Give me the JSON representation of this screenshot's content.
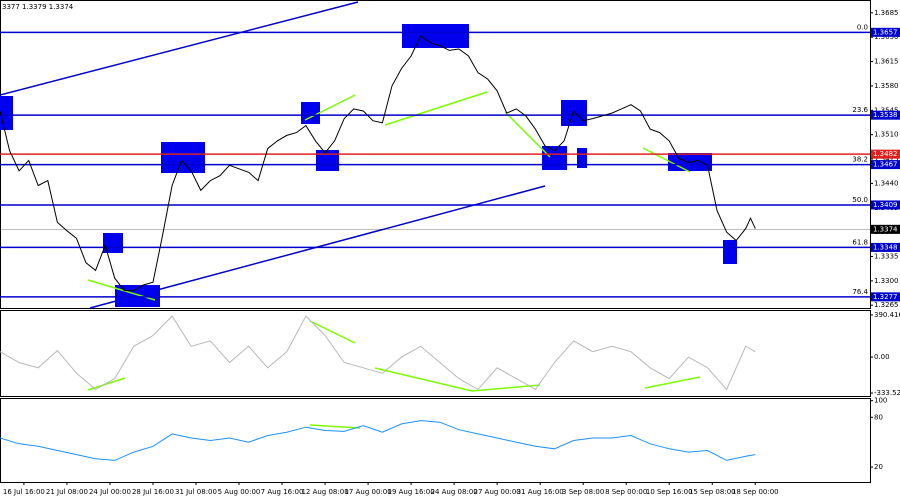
{
  "chart_data": [
    {
      "type": "line",
      "title": "3377 1.3379 1.3374",
      "color": "#000000",
      "xlim": [
        0,
        182
      ],
      "ylim": [
        1.3261,
        1.3702
      ],
      "yticks": [
        1.3685,
        {
          "value": 1.365,
          "label": "1.3650"
        },
        1.3615,
        {
          "value": 1.358,
          "label": "1.3580"
        },
        1.3545,
        {
          "value": 1.351,
          "label": "1.3510"
        },
        1.3475,
        {
          "value": 1.344,
          "label": "1.3440"
        },
        1.3405,
        {
          "value": 1.337,
          "label": "1.3370"
        },
        1.3335,
        {
          "value": 1.33,
          "label": "1.3300"
        },
        1.3265
      ],
      "levels": [
        {
          "value": 1.3657,
          "color": "#0000cc",
          "fib": "0.0"
        },
        {
          "value": 1.3538,
          "color": "#0000cc",
          "fib": "23.6"
        },
        {
          "value": 1.3482,
          "color": "#e02020"
        },
        {
          "value": 1.3467,
          "color": "#0000cc",
          "fib": "38.2"
        },
        {
          "value": 1.3409,
          "color": "#0000cc",
          "fib": "50.0"
        },
        {
          "value": 1.3374,
          "color": "#000000"
        },
        {
          "value": 1.3348,
          "color": "#0000cc",
          "fib": "61.8"
        },
        {
          "value": 1.3277,
          "color": "#0000cc",
          "fib": "76.4"
        }
      ],
      "x": [
        0,
        2,
        4,
        6,
        8,
        10,
        12,
        14,
        16,
        18,
        20,
        22,
        24,
        26,
        28,
        30,
        32,
        34,
        36,
        38,
        40,
        42,
        44,
        46,
        48,
        50,
        52,
        54,
        56,
        58,
        60,
        62,
        64,
        66,
        68,
        70,
        72,
        74,
        76,
        78,
        80,
        82,
        84,
        86,
        88,
        90,
        92,
        94,
        96,
        98,
        100,
        102,
        104,
        106,
        108,
        110,
        112,
        114,
        116,
        118,
        120,
        122,
        124,
        126,
        128,
        130,
        132,
        134,
        136,
        138,
        140,
        142,
        144,
        146,
        148,
        150,
        152,
        154,
        156,
        157,
        158
      ],
      "values": [
        1.3544,
        1.3487,
        1.3458,
        1.3473,
        1.3437,
        1.3444,
        1.3384,
        1.3372,
        1.3361,
        1.3326,
        1.3315,
        1.3351,
        1.3304,
        1.3286,
        1.3286,
        1.3294,
        1.3298,
        1.3365,
        1.3437,
        1.3473,
        1.3458,
        1.343,
        1.3444,
        1.3451,
        1.3466,
        1.3461,
        1.3456,
        1.3444,
        1.349,
        1.3501,
        1.3509,
        1.3513,
        1.3523,
        1.3501,
        1.3484,
        1.3501,
        1.3533,
        1.3547,
        1.3544,
        1.353,
        1.3527,
        1.358,
        1.3605,
        1.3623,
        1.3652,
        1.3642,
        1.3638,
        1.3631,
        1.3633,
        1.3623,
        1.3599,
        1.359,
        1.3573,
        1.3541,
        1.3547,
        1.3537,
        1.3518,
        1.3494,
        1.3487,
        1.3501,
        1.3544,
        1.353,
        1.3533,
        1.3537,
        1.3541,
        1.3547,
        1.3553,
        1.3544,
        1.3518,
        1.3513,
        1.3501,
        1.3476,
        1.347,
        1.3473,
        1.3466,
        1.3401,
        1.337,
        1.3358,
        1.3375,
        1.339,
        1.3375
      ]
    },
    {
      "type": "line",
      "color": "#b8b8b8",
      "xlim": [
        0,
        182
      ],
      "ylim": [
        -361,
        427
      ],
      "yticks": [
        390.4163,
        {
          "value": 0,
          "label": "0.00"
        },
        -333.522
      ],
      "x": [
        0,
        4,
        8,
        12,
        16,
        20,
        24,
        28,
        32,
        36,
        40,
        44,
        48,
        52,
        56,
        60,
        64,
        68,
        72,
        76,
        80,
        84,
        88,
        92,
        96,
        100,
        104,
        108,
        112,
        116,
        120,
        124,
        128,
        132,
        136,
        140,
        144,
        148,
        152,
        156,
        158
      ],
      "values": [
        50,
        -50,
        -100,
        60,
        -150,
        -300,
        -200,
        100,
        200,
        380,
        100,
        150,
        -50,
        100,
        -100,
        50,
        380,
        200,
        -50,
        -100,
        -150,
        0,
        100,
        -50,
        -200,
        -300,
        -100,
        -200,
        -300,
        -50,
        150,
        50,
        100,
        50,
        -100,
        -200,
        0,
        -100,
        -300,
        100,
        50
      ]
    },
    {
      "type": "line",
      "color": "#1e90ff",
      "xlim": [
        0,
        182
      ],
      "ylim": [
        2,
        102
      ],
      "yticks": [
        100,
        80,
        20
      ],
      "x": [
        0,
        4,
        8,
        12,
        16,
        20,
        24,
        28,
        32,
        36,
        40,
        44,
        48,
        52,
        56,
        60,
        64,
        68,
        72,
        76,
        80,
        84,
        88,
        92,
        96,
        100,
        104,
        108,
        112,
        116,
        120,
        124,
        128,
        132,
        136,
        140,
        144,
        148,
        152,
        156,
        158
      ],
      "values": [
        55,
        48,
        45,
        40,
        35,
        30,
        28,
        38,
        45,
        60,
        55,
        52,
        55,
        50,
        58,
        62,
        68,
        64,
        63,
        70,
        62,
        72,
        76,
        74,
        65,
        60,
        55,
        50,
        45,
        42,
        52,
        55,
        55,
        58,
        48,
        42,
        38,
        40,
        28,
        33,
        35
      ],
      "xticks": [
        {
          "value": 5,
          "label": "16 Jul 16:00"
        },
        {
          "value": 14,
          "label": "21 Jul 08:00"
        },
        {
          "value": 23,
          "label": "24 Jul 00:00"
        },
        {
          "value": 32,
          "label": "28 Jul 16:00"
        },
        {
          "value": 41,
          "label": "31 Jul 08:00"
        },
        {
          "value": 50,
          "label": "5 Aug 00:00"
        },
        {
          "value": 59,
          "label": "7 Aug 16:00"
        },
        {
          "value": 68,
          "label": "12 Aug 08:00"
        },
        {
          "value": 77,
          "label": "17 Aug 00:00"
        },
        {
          "value": 86,
          "label": "19 Aug 16:00"
        },
        {
          "value": 95,
          "label": "24 Aug 08:00"
        },
        {
          "value": 104,
          "label": "27 Aug 00:00"
        },
        {
          "value": 113,
          "label": "31 Aug 16:00"
        },
        {
          "value": 122,
          "label": "3 Sep 08:00"
        },
        {
          "value": 131,
          "label": "8 Sep 00:00"
        },
        {
          "value": 140,
          "label": "10 Sep 16:00"
        },
        {
          "value": 149,
          "label": "15 Sep 08:00"
        },
        {
          "value": 158,
          "label": "18 Sep 00:00"
        }
      ]
    }
  ]
}
